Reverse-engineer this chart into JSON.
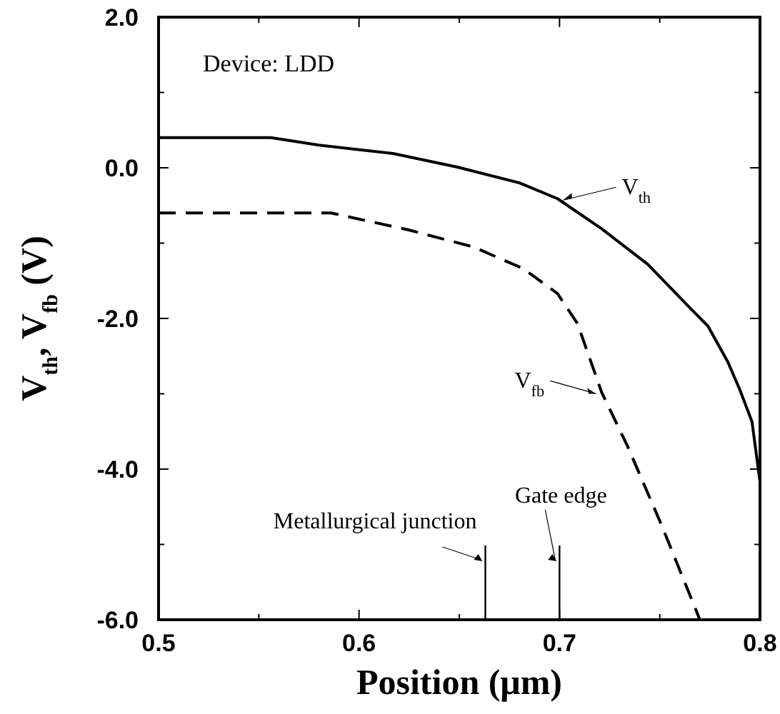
{
  "chart_data": {
    "type": "line",
    "xlabel": "Position (μm)",
    "ylabel": "V$_{th}$, V$_{fb}$ (V)",
    "xlim": [
      0.5,
      0.8
    ],
    "ylim": [
      -6,
      2
    ],
    "xticks": [
      0.5,
      {
        "value": 0.55,
        "label": null
      },
      0.6,
      {
        "value": 0.65,
        "label": null
      },
      0.7,
      {
        "value": 0.75,
        "label": null
      },
      0.8
    ],
    "yticks": [
      {
        "value": -6,
        "label": "-6.0"
      },
      {
        "value": -5,
        "label": null
      },
      {
        "value": -4,
        "label": "-4.0"
      },
      {
        "value": -3,
        "label": null
      },
      {
        "value": -2,
        "label": "-2.0"
      },
      {
        "value": -1,
        "label": null
      },
      {
        "value": 0,
        "label": "0.0"
      },
      {
        "value": 1,
        "label": null
      },
      {
        "value": 2,
        "label": "2.0"
      }
    ],
    "series": [
      {
        "name": "V$_{th}$",
        "color": "#000000",
        "line_style": "solid",
        "x": [
          0.5,
          0.556,
          0.58,
          0.617,
          0.649,
          0.68,
          0.699,
          0.721,
          0.744,
          0.764,
          0.774,
          0.784,
          0.79,
          0.796,
          0.8
        ],
        "values": [
          0.4,
          0.4,
          0.3,
          0.19,
          0.01,
          -0.2,
          -0.41,
          -0.81,
          -1.28,
          -1.83,
          -2.1,
          -2.58,
          -2.95,
          -3.37,
          -4.17
        ]
      },
      {
        "name": "V$_{fb}$",
        "color": "#000000",
        "line_style": "dashed",
        "x": [
          0.5,
          0.586,
          0.624,
          0.657,
          0.682,
          0.699,
          0.709,
          0.721,
          0.734,
          0.751,
          0.77
        ],
        "values": [
          -0.6,
          -0.6,
          -0.82,
          -1.05,
          -1.34,
          -1.67,
          -2.07,
          -2.98,
          -3.7,
          -4.75,
          -6.0
        ]
      }
    ],
    "ref_lines": [
      {
        "axis": "x",
        "value": 0.663,
        "label": "Metallurgical junction",
        "color": "#000000"
      },
      {
        "axis": "x",
        "value": 0.7,
        "label": "Gate edge",
        "color": "#000000"
      }
    ],
    "annotations": [
      "Device: LDD"
    ]
  }
}
